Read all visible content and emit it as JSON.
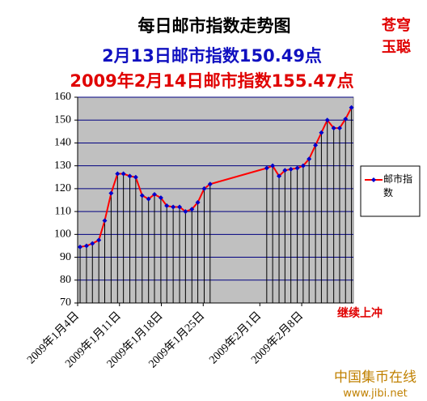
{
  "chart_data": {
    "type": "line",
    "title": "每日邮市指数走势图",
    "subtitle": "2月13日邮市指数150.49点",
    "subtitle2": "2009年2月14日邮市指数155.47点",
    "corner_text": [
      "苍穹",
      "玉聪"
    ],
    "annotation": "继续上冲",
    "watermark": [
      "中国集币在线",
      "www.jibi.net"
    ],
    "series": [
      {
        "name": "邮市指数",
        "color": "#ff0000",
        "marker_color": "#0000cc",
        "x": [
          0.5,
          1.8,
          3.0,
          4.3,
          5.5,
          6.8,
          8.1,
          9.3,
          10.6,
          11.8,
          13.1,
          14.4,
          15.6,
          16.9,
          18.1,
          19.4,
          20.7,
          21.9,
          23.2,
          24.4,
          25.7,
          26.9,
          38.4,
          39.6,
          40.9,
          42.1,
          43.3,
          44.6,
          45.8,
          47.0,
          48.3,
          49.5,
          50.7,
          52.0,
          53.2,
          54.4,
          55.6
        ],
        "values": [
          94.5,
          95,
          96,
          97.5,
          106,
          118,
          126.5,
          126.5,
          125.5,
          125,
          117,
          115.5,
          117.5,
          116,
          112.5,
          112,
          112,
          110,
          111,
          114,
          120,
          122,
          129,
          130,
          125.5,
          128,
          128.5,
          129,
          130,
          133,
          139,
          144.5,
          150,
          146.5,
          146.5,
          150.49,
          155.47
        ]
      }
    ],
    "xlim": [
      0,
      56
    ],
    "xticks": [
      {
        "value": 0,
        "label": "2009年1月4日"
      },
      {
        "value": 8.5,
        "label": "2009年1月11日"
      },
      {
        "value": 17,
        "label": "2009年1月18日"
      },
      {
        "value": 25.5,
        "label": "2009年1月25日"
      },
      {
        "value": 37,
        "label": "2009年2月1日"
      },
      {
        "value": 45.5,
        "label": "2009年2月8日"
      }
    ],
    "ylim": [
      70,
      160
    ],
    "yticks": [
      70,
      80,
      90,
      100,
      110,
      120,
      130,
      140,
      150,
      160
    ],
    "grid": true,
    "plot_background": "#c0c0c0",
    "legend": "right"
  }
}
